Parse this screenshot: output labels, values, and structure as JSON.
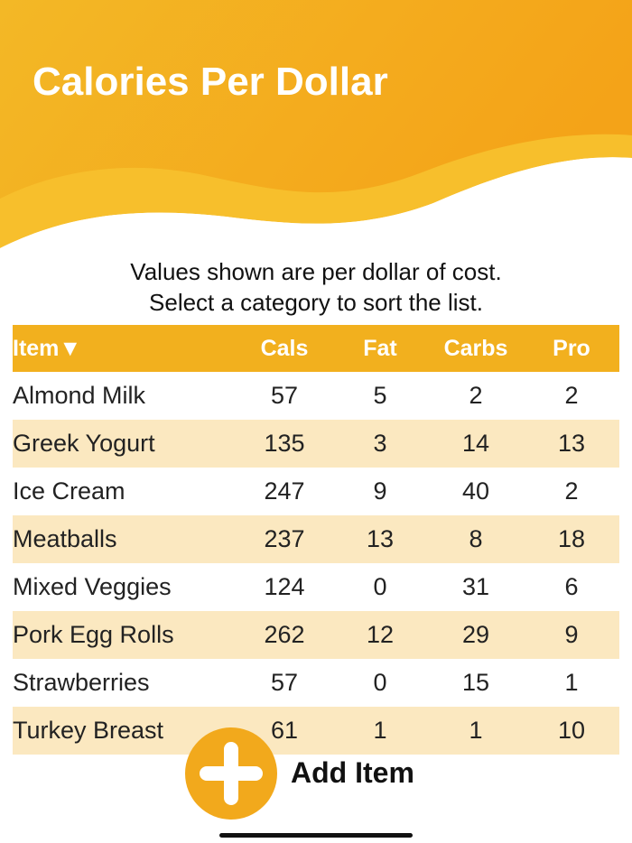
{
  "header": {
    "title": "Calories Per Dollar"
  },
  "instructions": [
    "Values shown are per dollar of cost.",
    "Select a category to sort the list."
  ],
  "table": {
    "columns": [
      "Item▼",
      "Cals",
      "Fat",
      "Carbs",
      "Pro"
    ],
    "rows": [
      [
        "Almond Milk",
        57,
        5,
        2,
        2
      ],
      [
        "Greek Yogurt",
        135,
        3,
        14,
        13
      ],
      [
        "Ice Cream",
        247,
        9,
        40,
        2
      ],
      [
        "Meatballs",
        237,
        13,
        8,
        18
      ],
      [
        "Mixed Veggies",
        124,
        0,
        31,
        6
      ],
      [
        "Pork Egg Rolls",
        262,
        12,
        29,
        9
      ],
      [
        "Strawberries",
        57,
        0,
        15,
        1
      ],
      [
        "Turkey Breast",
        61,
        1,
        1,
        10
      ]
    ]
  },
  "button": {
    "label": "Add Item"
  }
}
